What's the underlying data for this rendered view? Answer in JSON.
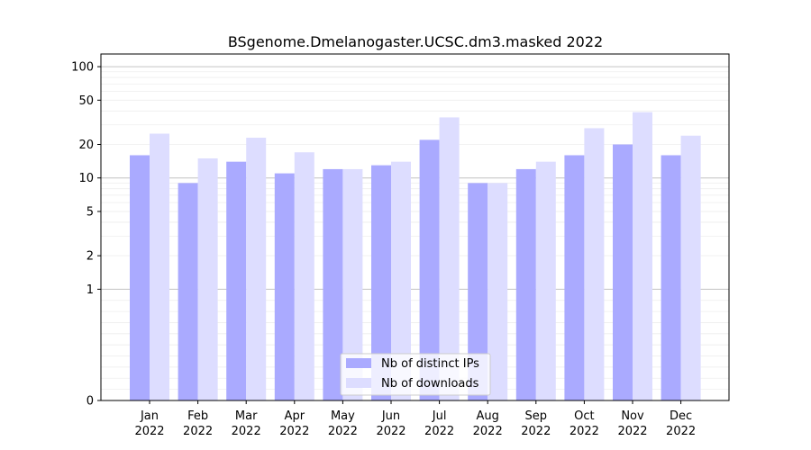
{
  "chart_data": {
    "type": "bar",
    "title": "BSgenome.Dmelanogaster.UCSC.dm3.masked 2022",
    "xlabel": "",
    "ylabel": "",
    "yscale": "symlog",
    "ylim": [
      0,
      130
    ],
    "yticks": [
      0,
      1,
      2,
      5,
      10,
      20,
      50,
      100
    ],
    "categories": [
      [
        "Jan",
        "2022"
      ],
      [
        "Feb",
        "2022"
      ],
      [
        "Mar",
        "2022"
      ],
      [
        "Apr",
        "2022"
      ],
      [
        "May",
        "2022"
      ],
      [
        "Jun",
        "2022"
      ],
      [
        "Jul",
        "2022"
      ],
      [
        "Aug",
        "2022"
      ],
      [
        "Sep",
        "2022"
      ],
      [
        "Oct",
        "2022"
      ],
      [
        "Nov",
        "2022"
      ],
      [
        "Dec",
        "2022"
      ]
    ],
    "series": [
      {
        "name": "Nb of distinct IPs",
        "color": "#aaaaff",
        "values": [
          16,
          9,
          14,
          11,
          12,
          13,
          22,
          9,
          12,
          16,
          20,
          16
        ]
      },
      {
        "name": "Nb of downloads",
        "color": "#ddddff",
        "values": [
          25,
          15,
          23,
          17,
          12,
          14,
          35,
          9,
          14,
          28,
          39,
          24
        ]
      }
    ],
    "grid": true,
    "legend_position": "bottom-center"
  }
}
